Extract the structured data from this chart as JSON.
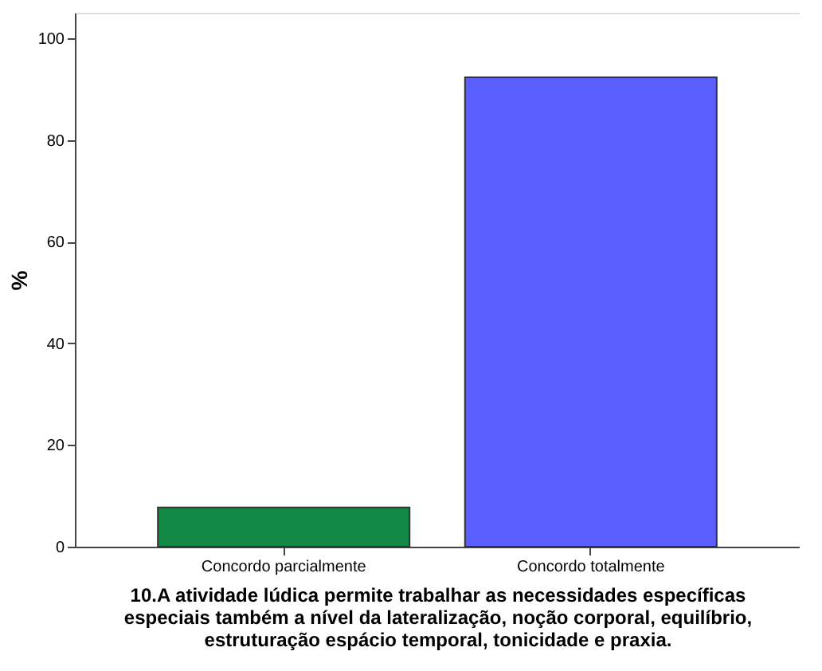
{
  "chart_data": {
    "type": "bar",
    "categories": [
      "Concordo parcialmente",
      "Concordo totalmente"
    ],
    "values": [
      7.7,
      92.3
    ],
    "colors": [
      "#118844",
      "#5b5fff"
    ],
    "ylabel": "%",
    "xlabel": "10.A atividade lúdica permite trabalhar as necessidades específicas\nespeciais também a nível da lateralização, noção corporal, equilíbrio,\nestruturação espácio temporal, tonicidade e praxia.",
    "ylim": [
      0,
      105
    ],
    "yticks": [
      0,
      20,
      40,
      60,
      80,
      100
    ],
    "grid": false,
    "legend": false
  }
}
